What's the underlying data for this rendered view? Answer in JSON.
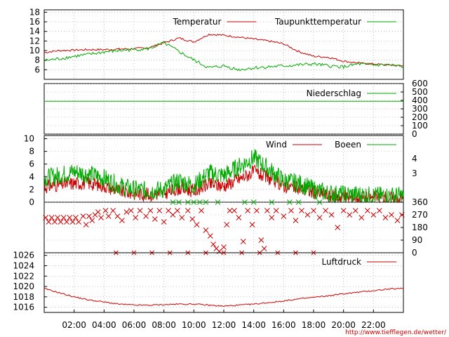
{
  "colors": {
    "red": "#cc0000",
    "green": "#00aa00",
    "axis": "#000000",
    "grid": "#a0a0a0"
  },
  "chart_data": [
    {
      "type": "line",
      "title": "",
      "legend_position": "top-right",
      "grid": true,
      "x_ticks": [
        "02:00",
        "04:00",
        "06:00",
        "08:00",
        "10:00",
        "12:00",
        "14:00",
        "16:00",
        "18:00",
        "20:00",
        "22:00"
      ],
      "x_hours": [
        0,
        1,
        2,
        3,
        4,
        5,
        6,
        7,
        8,
        9,
        10,
        11,
        12,
        13,
        14,
        15,
        16,
        17,
        18,
        19,
        20,
        21,
        22,
        23,
        24
      ],
      "ylim": [
        4,
        18.5
      ],
      "y_ticks": [
        "6",
        "8",
        "10",
        "12",
        "14",
        "16",
        "18"
      ],
      "series": [
        {
          "name": "Temperatur",
          "color": "#cc0000",
          "values": [
            9.6,
            10.0,
            10.1,
            10.2,
            10.2,
            10.3,
            10.4,
            10.6,
            11.6,
            12.6,
            11.8,
            13.4,
            13.2,
            12.8,
            12.4,
            12.0,
            11.4,
            9.8,
            8.8,
            8.6,
            7.8,
            7.4,
            7.2,
            7.0,
            6.8
          ]
        },
        {
          "name": "Taupunkttemperatur",
          "color": "#00aa00",
          "values": [
            7.9,
            8.3,
            8.8,
            9.2,
            9.7,
            10.0,
            10.2,
            10.4,
            11.6,
            9.8,
            8.0,
            6.4,
            6.8,
            6.0,
            6.4,
            6.6,
            6.8,
            7.0,
            7.2,
            6.8,
            6.6,
            7.2,
            7.0,
            7.0,
            6.6
          ]
        }
      ]
    },
    {
      "type": "line",
      "title": "",
      "legend_position": "top-right",
      "grid": true,
      "ylim": [
        0,
        600
      ],
      "y_ticks": [
        "600",
        "500",
        "400",
        "300",
        "200",
        "100",
        "0"
      ],
      "series": [
        {
          "name": "Niederschlag",
          "color": "#00aa00",
          "x_hours": [
            0,
            24
          ],
          "values": [
            390,
            390
          ]
        }
      ]
    },
    {
      "type": "line",
      "title": "",
      "legend_position": "top-right",
      "grid": true,
      "ylim": [
        0,
        10.5
      ],
      "y_ticks": [
        "0",
        "2",
        "4",
        "6",
        "8",
        "10"
      ],
      "right_ticks": [
        "4",
        "3"
      ],
      "series": [
        {
          "name": "Wind",
          "color": "#cc0000",
          "values": [
            2.4,
            2.8,
            3.0,
            3.0,
            2.6,
            1.8,
            1.4,
            1.2,
            1.4,
            2.2,
            1.8,
            2.8,
            2.6,
            3.6,
            4.8,
            3.8,
            2.6,
            2.2,
            1.6,
            1.0,
            0.8,
            0.8,
            0.7,
            0.7,
            0.7
          ]
        },
        {
          "name": "Boeen",
          "color": "#00aa00",
          "values": [
            3.8,
            4.2,
            4.8,
            4.4,
            3.8,
            2.6,
            2.0,
            1.8,
            2.0,
            3.4,
            2.6,
            4.6,
            4.2,
            5.6,
            7.0,
            5.2,
            3.4,
            3.0,
            2.0,
            1.4,
            1.2,
            1.2,
            1.0,
            1.0,
            1.0
          ]
        }
      ]
    },
    {
      "type": "scatter",
      "title": "",
      "grid": true,
      "ylim": [
        0,
        360
      ],
      "y_ticks": [
        "360",
        "270",
        "180",
        "90",
        "0"
      ],
      "series": [
        {
          "name": "",
          "color": "#cc0000",
          "points": [
            [
              0.1,
              250
            ],
            [
              0.3,
              220
            ],
            [
              0.5,
              250
            ],
            [
              0.7,
              220
            ],
            [
              0.9,
              250
            ],
            [
              1.1,
              220
            ],
            [
              1.3,
              250
            ],
            [
              1.5,
              220
            ],
            [
              1.7,
              250
            ],
            [
              1.9,
              220
            ],
            [
              2.1,
              250
            ],
            [
              2.3,
              220
            ],
            [
              2.6,
              260
            ],
            [
              2.8,
              200
            ],
            [
              3.0,
              260
            ],
            [
              3.2,
              230
            ],
            [
              3.4,
              270
            ],
            [
              3.6,
              290
            ],
            [
              3.8,
              250
            ],
            [
              4.1,
              300
            ],
            [
              4.3,
              260
            ],
            [
              4.6,
              300
            ],
            [
              4.9,
              260
            ],
            [
              5.2,
              230
            ],
            [
              5.5,
              290
            ],
            [
              5.8,
              300
            ],
            [
              6.1,
              250
            ],
            [
              6.4,
              300
            ],
            [
              6.8,
              260
            ],
            [
              7.1,
              300
            ],
            [
              7.4,
              240
            ],
            [
              7.7,
              300
            ],
            [
              8.0,
              220
            ],
            [
              8.3,
              300
            ],
            [
              8.6,
              270
            ],
            [
              8.9,
              300
            ],
            [
              9.2,
              250
            ],
            [
              9.6,
              300
            ],
            [
              9.9,
              240
            ],
            [
              10.2,
              200
            ],
            [
              10.5,
              300
            ],
            [
              10.8,
              160
            ],
            [
              11.1,
              120
            ],
            [
              11.3,
              60
            ],
            [
              11.5,
              30
            ],
            [
              11.7,
              10
            ],
            [
              12.0,
              40
            ],
            [
              12.2,
              200
            ],
            [
              12.4,
              300
            ],
            [
              12.7,
              300
            ],
            [
              13.0,
              250
            ],
            [
              13.3,
              80
            ],
            [
              13.6,
              300
            ],
            [
              13.9,
              200
            ],
            [
              14.2,
              300
            ],
            [
              14.5,
              90
            ],
            [
              14.7,
              30
            ],
            [
              14.9,
              300
            ],
            [
              15.2,
              250
            ],
            [
              15.5,
              300
            ],
            [
              16.0,
              260
            ],
            [
              16.5,
              300
            ],
            [
              16.8,
              230
            ],
            [
              17.2,
              300
            ],
            [
              17.6,
              270
            ],
            [
              18.0,
              300
            ],
            [
              18.4,
              250
            ],
            [
              18.8,
              300
            ],
            [
              19.2,
              270
            ],
            [
              19.6,
              180
            ],
            [
              20.0,
              300
            ],
            [
              20.4,
              270
            ],
            [
              20.8,
              300
            ],
            [
              21.2,
              250
            ],
            [
              21.6,
              300
            ],
            [
              22.0,
              270
            ],
            [
              22.4,
              300
            ],
            [
              22.8,
              250
            ],
            [
              23.2,
              270
            ],
            [
              23.6,
              230
            ],
            [
              23.9,
              270
            ]
          ]
        },
        {
          "name": "",
          "color": "#00aa00",
          "points": [
            [
              8.6,
              360
            ],
            [
              9.0,
              360
            ],
            [
              9.6,
              360
            ],
            [
              10.0,
              360
            ],
            [
              10.4,
              360
            ],
            [
              10.8,
              360
            ],
            [
              11.6,
              360
            ],
            [
              13.4,
              360
            ],
            [
              14.0,
              360
            ],
            [
              15.2,
              360
            ],
            [
              16.4,
              360
            ],
            [
              17.0,
              360
            ],
            [
              18.4,
              360
            ]
          ]
        }
      ]
    },
    {
      "type": "line",
      "title": "",
      "legend_position": "top-right",
      "grid": true,
      "ylim": [
        1015,
        1026.5
      ],
      "y_ticks": [
        "1016",
        "1018",
        "1020",
        "1022",
        "1024",
        "1026"
      ],
      "series": [
        {
          "name": "Luftdruck",
          "color": "#cc0000",
          "values": [
            1019.6,
            1018.8,
            1018.0,
            1017.4,
            1017.0,
            1016.6,
            1016.4,
            1016.4,
            1016.5,
            1016.6,
            1016.6,
            1016.4,
            1016.2,
            1016.4,
            1016.6,
            1016.9,
            1017.2,
            1017.6,
            1017.9,
            1018.2,
            1018.6,
            1018.9,
            1019.2,
            1019.5,
            1019.6
          ]
        }
      ]
    }
  ],
  "footer": {
    "credit": "http://www.tiefflegen.de/wetter/"
  }
}
